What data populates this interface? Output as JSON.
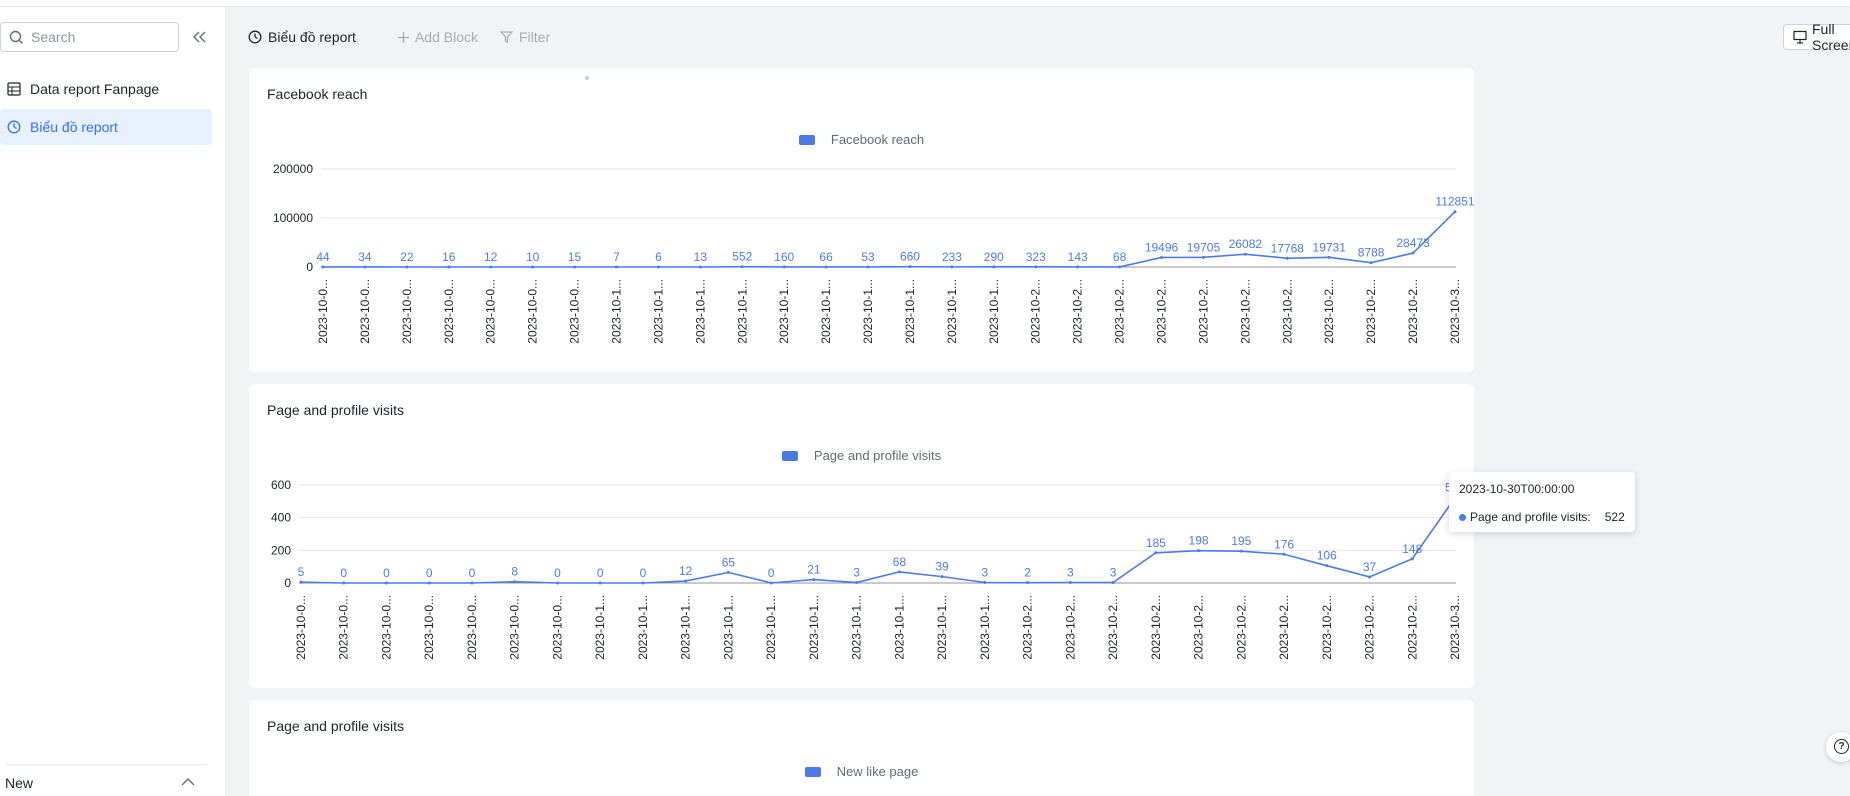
{
  "sidebar": {
    "search_placeholder": "Search",
    "items": [
      {
        "label": "Data report Fanpage",
        "icon": "table-icon",
        "active": false
      },
      {
        "label": "Biểu đồ report",
        "icon": "dashboard-icon",
        "active": true
      }
    ],
    "footer_label": "New"
  },
  "toolbar": {
    "title": "Biểu đồ report",
    "add_block": "Add Block",
    "filter": "Filter",
    "full_screen": "Full Screen"
  },
  "colors": {
    "accent": "#3370ff",
    "series": "#4d7be6"
  },
  "charts": [
    {
      "title": "Facebook reach",
      "chart_data": {
        "type": "line",
        "legend": "Facebook reach",
        "y_ticks": [
          "200000",
          "100000",
          "0"
        ],
        "ylim": [
          0,
          200000
        ],
        "x": [
          "2023-10-0...",
          "2023-10-0...",
          "2023-10-0...",
          "2023-10-0...",
          "2023-10-0...",
          "2023-10-0...",
          "2023-10-0...",
          "2023-10-1...",
          "2023-10-1...",
          "2023-10-1...",
          "2023-10-1...",
          "2023-10-1...",
          "2023-10-1...",
          "2023-10-1...",
          "2023-10-1...",
          "2023-10-1...",
          "2023-10-1...",
          "2023-10-2...",
          "2023-10-2...",
          "2023-10-2...",
          "2023-10-2...",
          "2023-10-2...",
          "2023-10-2...",
          "2023-10-2...",
          "2023-10-2...",
          "2023-10-2...",
          "2023-10-2...",
          "2023-10-3..."
        ],
        "values": [
          44,
          34,
          22,
          16,
          12,
          10,
          15,
          7,
          6,
          13,
          552,
          160,
          66,
          53,
          660,
          233,
          290,
          323,
          143,
          68,
          19496,
          19705,
          26082,
          17768,
          19731,
          8788,
          28473,
          112851
        ]
      }
    },
    {
      "title": "Page and profile visits",
      "chart_data": {
        "type": "line",
        "legend": "Page and profile visits",
        "y_ticks": [
          "600",
          "400",
          "200",
          "0"
        ],
        "ylim": [
          0,
          600
        ],
        "x": [
          "2023-10-0...",
          "2023-10-0...",
          "2023-10-0...",
          "2023-10-0...",
          "2023-10-0...",
          "2023-10-0...",
          "2023-10-0...",
          "2023-10-1...",
          "2023-10-1...",
          "2023-10-1...",
          "2023-10-1...",
          "2023-10-1...",
          "2023-10-1...",
          "2023-10-1...",
          "2023-10-1...",
          "2023-10-1...",
          "2023-10-1...",
          "2023-10-2...",
          "2023-10-2...",
          "2023-10-2...",
          "2023-10-2...",
          "2023-10-2...",
          "2023-10-2...",
          "2023-10-2...",
          "2023-10-2...",
          "2023-10-2...",
          "2023-10-2...",
          "2023-10-3..."
        ],
        "values": [
          5,
          0,
          0,
          0,
          0,
          8,
          0,
          0,
          0,
          12,
          65,
          0,
          21,
          3,
          68,
          39,
          3,
          2,
          3,
          3,
          185,
          198,
          195,
          176,
          106,
          37,
          148,
          522
        ]
      },
      "tooltip": {
        "title": "2023-10-30T00:00:00",
        "series": "Page and profile visits:",
        "value": "522"
      }
    },
    {
      "title": "Page and profile visits",
      "chart_data": {
        "type": "line",
        "legend": "New like page"
      }
    }
  ]
}
